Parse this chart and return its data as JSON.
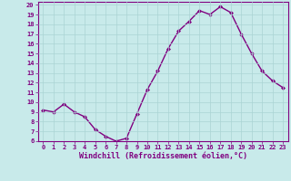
{
  "x": [
    0,
    1,
    2,
    3,
    4,
    5,
    6,
    7,
    8,
    9,
    10,
    11,
    12,
    13,
    14,
    15,
    16,
    17,
    18,
    19,
    20,
    21,
    22,
    23
  ],
  "y": [
    9.2,
    9.0,
    9.8,
    9.0,
    8.5,
    7.2,
    6.5,
    6.0,
    6.3,
    8.8,
    11.3,
    13.2,
    15.5,
    17.3,
    18.3,
    19.4,
    19.0,
    19.8,
    19.2,
    17.0,
    15.0,
    13.2,
    12.2,
    11.5
  ],
  "line_color": "#800080",
  "marker": "D",
  "marker_size": 2.0,
  "line_width": 1.0,
  "xlabel": "Windchill (Refroidissement éolien,°C)",
  "xlabel_fontsize": 6.0,
  "xlim": [
    -0.5,
    23.5
  ],
  "ylim": [
    6,
    20
  ],
  "yticks": [
    6,
    7,
    8,
    9,
    10,
    11,
    12,
    13,
    14,
    15,
    16,
    17,
    18,
    19,
    20
  ],
  "xticks": [
    0,
    1,
    2,
    3,
    4,
    5,
    6,
    7,
    8,
    9,
    10,
    11,
    12,
    13,
    14,
    15,
    16,
    17,
    18,
    19,
    20,
    21,
    22,
    23
  ],
  "tick_fontsize": 5.0,
  "background_color": "#c8eaea",
  "grid_color": "#aad4d4",
  "border_color": "#800080",
  "fig_width": 3.2,
  "fig_height": 2.0,
  "dpi": 100
}
